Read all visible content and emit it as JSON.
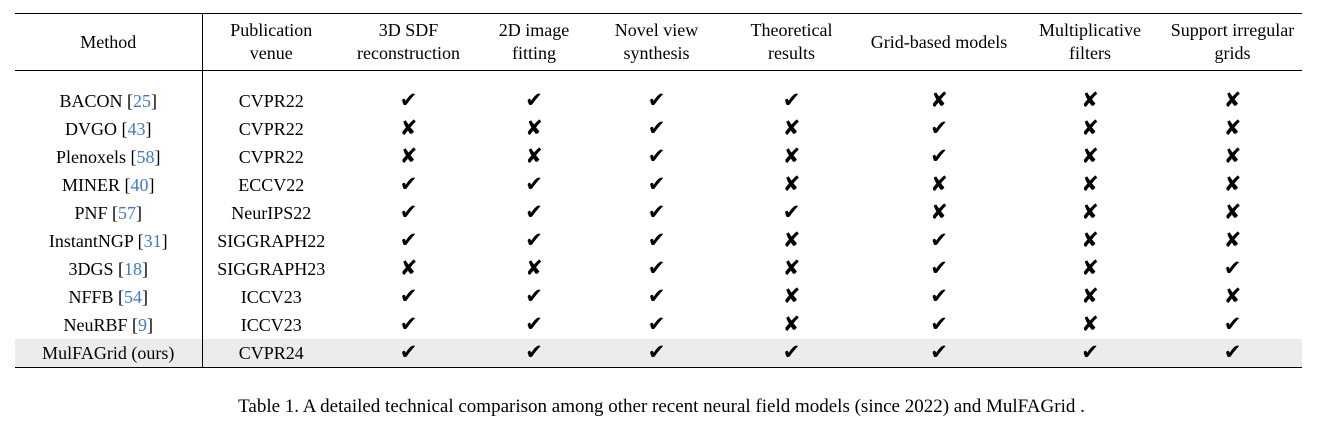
{
  "columns": [
    "Method",
    "Publication venue",
    "3D SDF reconstruction",
    "2D image fitting",
    "Novel view synthesis",
    "Theoretical results",
    "Grid-based models",
    "Multiplicative filters",
    "Support irregular grids"
  ],
  "header_lines": [
    [
      "Method"
    ],
    [
      "Publication",
      "venue"
    ],
    [
      "3D SDF",
      "reconstruction"
    ],
    [
      "2D image",
      "fitting"
    ],
    [
      "Novel view",
      "synthesis"
    ],
    [
      "Theoretical",
      "results"
    ],
    [
      "Grid-based models"
    ],
    [
      "Multiplicative",
      "filters"
    ],
    [
      "Support irregular",
      "grids"
    ]
  ],
  "symbols": {
    "check": "✔",
    "cross": "✘"
  },
  "colors": {
    "citation": "#3f7cc4",
    "highlight_row": "#ececec"
  },
  "rows": [
    {
      "method": "BACON",
      "cite": "25",
      "venue": "CVPR22",
      "marks": [
        "check",
        "check",
        "check",
        "check",
        "cross",
        "cross",
        "cross"
      ]
    },
    {
      "method": "DVGO",
      "cite": "43",
      "venue": "CVPR22",
      "marks": [
        "cross",
        "cross",
        "check",
        "cross",
        "check",
        "cross",
        "cross"
      ]
    },
    {
      "method": "Plenoxels",
      "cite": "58",
      "venue": "CVPR22",
      "marks": [
        "cross",
        "cross",
        "check",
        "cross",
        "check",
        "cross",
        "cross"
      ]
    },
    {
      "method": "MINER",
      "cite": "40",
      "venue": "ECCV22",
      "marks": [
        "check",
        "check",
        "check",
        "cross",
        "cross",
        "cross",
        "cross"
      ]
    },
    {
      "method": "PNF",
      "cite": "57",
      "venue": "NeurIPS22",
      "marks": [
        "check",
        "check",
        "check",
        "check",
        "cross",
        "cross",
        "cross"
      ]
    },
    {
      "method": "InstantNGP",
      "cite": "31",
      "venue": "SIGGRAPH22",
      "marks": [
        "check",
        "check",
        "check",
        "cross",
        "check",
        "cross",
        "cross"
      ]
    },
    {
      "method": "3DGS",
      "cite": "18",
      "venue": "SIGGRAPH23",
      "marks": [
        "cross",
        "cross",
        "check",
        "cross",
        "check",
        "cross",
        "check"
      ]
    },
    {
      "method": "NFFB",
      "cite": "54",
      "venue": "ICCV23",
      "marks": [
        "check",
        "check",
        "check",
        "cross",
        "check",
        "cross",
        "cross"
      ]
    },
    {
      "method": "NeuRBF",
      "cite": "9",
      "venue": "ICCV23",
      "marks": [
        "check",
        "check",
        "check",
        "cross",
        "check",
        "cross",
        "check"
      ]
    },
    {
      "method": "MulFAGrid (ours)",
      "cite": null,
      "venue": "CVPR24",
      "marks": [
        "check",
        "check",
        "check",
        "check",
        "check",
        "check",
        "check"
      ],
      "highlight": true
    }
  ],
  "caption": "Table 1. A detailed technical comparison among other recent neural field models (since 2022) and MulFAGrid ."
}
